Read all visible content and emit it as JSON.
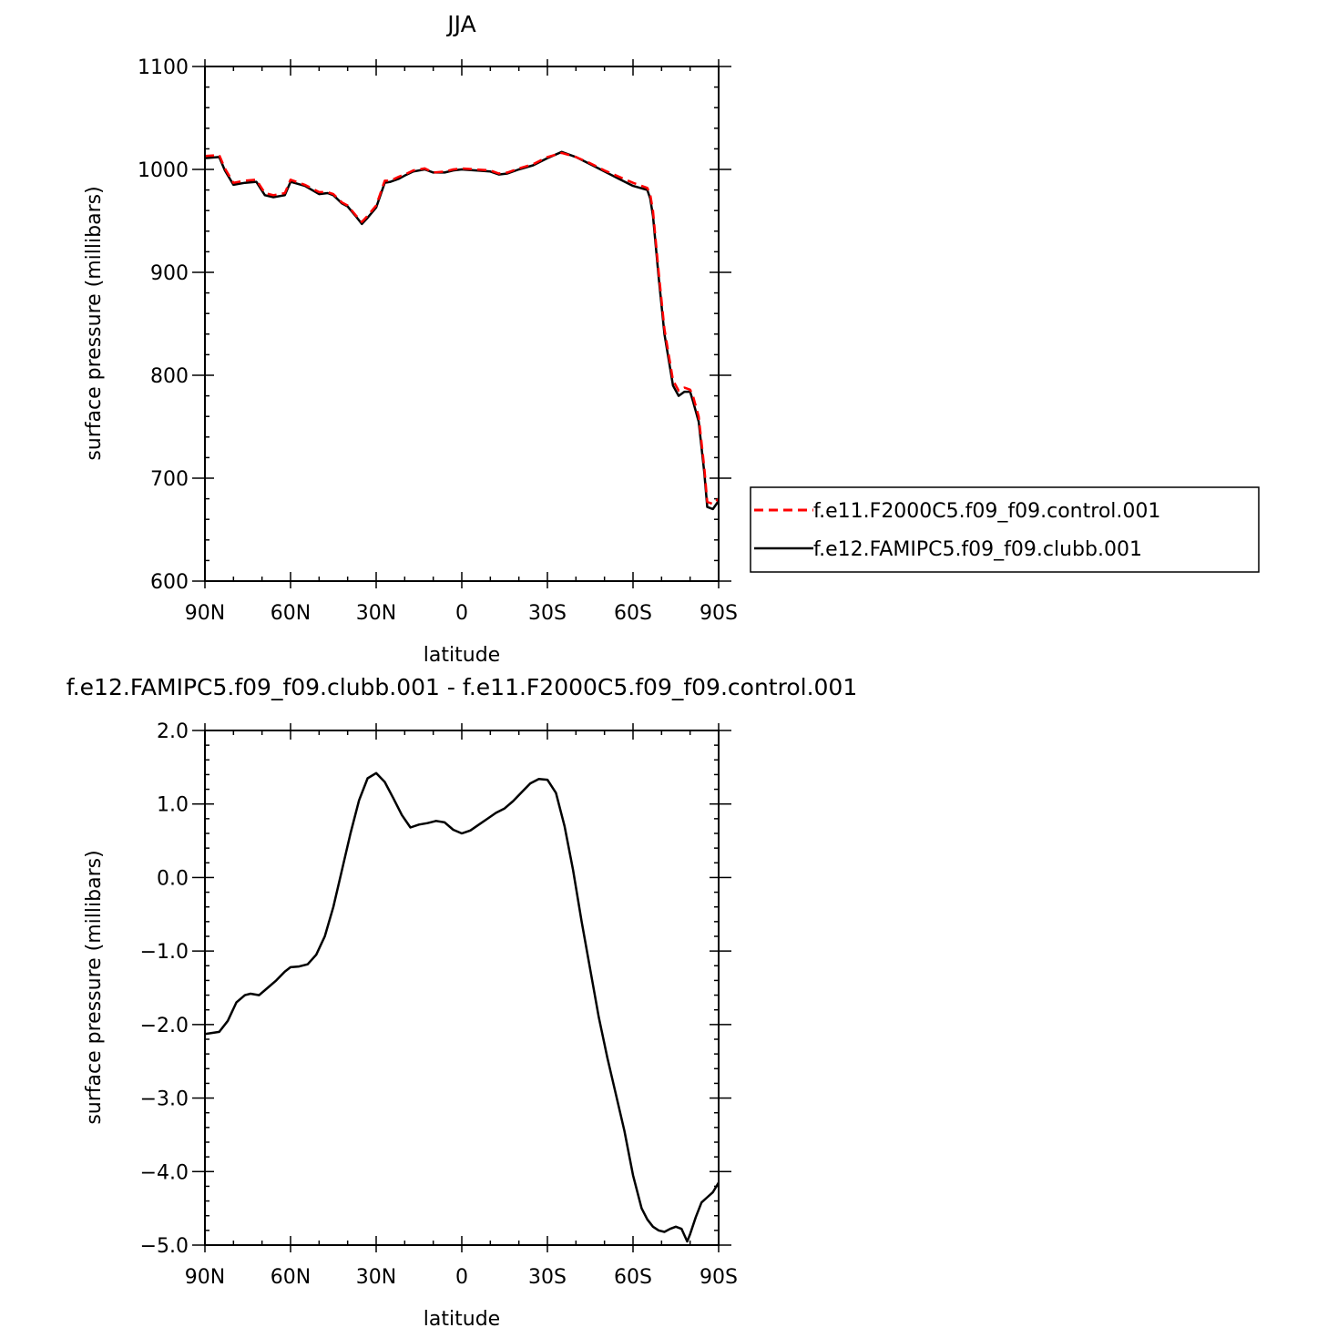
{
  "chart_data": [
    {
      "type": "line",
      "title": "JJA",
      "xlabel": "latitude",
      "ylabel": "surface pressure (millibars)",
      "xlim": [
        90,
        -90
      ],
      "ylim": [
        600,
        1100
      ],
      "x_ticks": [
        90,
        60,
        30,
        0,
        -30,
        -60,
        -90
      ],
      "x_tick_labels": [
        "90N",
        "60N",
        "30N",
        "0",
        "30S",
        "60S",
        "90S"
      ],
      "y_ticks": [
        600,
        700,
        800,
        900,
        1000,
        1100
      ],
      "y_tick_labels": [
        "600",
        "700",
        "800",
        "900",
        "1000",
        "1100"
      ],
      "legend_position": "right",
      "series": [
        {
          "name": "f.e11.F2000C5.f09_f09.control.001",
          "color": "#ff0000",
          "dash": "dashed",
          "x": [
            90,
            85,
            83,
            80,
            76,
            72,
            69,
            66,
            62,
            60,
            55,
            50,
            47,
            45,
            42,
            40,
            37,
            35,
            33,
            30,
            27,
            25,
            22,
            20,
            17,
            13,
            10,
            6,
            3,
            0,
            -5,
            -10,
            -13,
            -16,
            -20,
            -25,
            -30,
            -35,
            -40,
            -45,
            -50,
            -55,
            -60,
            -65,
            -66,
            -67,
            -69,
            -71,
            -74,
            -76,
            -78,
            -80,
            -81,
            -83,
            -85,
            -86,
            -88,
            -90
          ],
          "y": [
            1013,
            1014,
            1001,
            987,
            989,
            990,
            977,
            975,
            977,
            990,
            985,
            978,
            978,
            976,
            968,
            965,
            955,
            949,
            955,
            965,
            989,
            989,
            993,
            995,
            999,
            1001,
            997,
            998,
            1000,
            1001,
            1000,
            999,
            996,
            997,
            1001,
            1005,
            1012,
            1016,
            1012,
            1006,
            999,
            993,
            987,
            982,
            976,
            960,
            900,
            845,
            795,
            785,
            788,
            786,
            780,
            760,
            710,
            677,
            675,
            680
          ]
        },
        {
          "name": "f.e12.FAMIPC5.f09_f09.clubb.001",
          "color": "#000000",
          "dash": "solid",
          "x": [
            90,
            85,
            83,
            80,
            76,
            72,
            69,
            66,
            62,
            60,
            55,
            50,
            47,
            45,
            42,
            40,
            37,
            35,
            33,
            30,
            27,
            25,
            22,
            20,
            17,
            13,
            10,
            6,
            3,
            0,
            -5,
            -10,
            -13,
            -16,
            -20,
            -25,
            -30,
            -35,
            -40,
            -45,
            -50,
            -55,
            -60,
            -65,
            -66,
            -67,
            -69,
            -71,
            -74,
            -76,
            -78,
            -80,
            -81,
            -83,
            -85,
            -86,
            -88,
            -90
          ],
          "y": [
            1011,
            1012,
            999,
            985,
            987,
            988,
            975,
            973,
            975,
            988,
            984,
            976,
            977,
            975,
            967,
            964,
            954,
            947,
            953,
            963,
            987,
            988,
            991,
            994,
            998,
            1000,
            997,
            997,
            999,
            1000,
            999,
            998,
            995,
            996,
            1000,
            1004,
            1011,
            1017,
            1012,
            1005,
            998,
            991,
            984,
            980,
            972,
            955,
            895,
            840,
            790,
            780,
            784,
            784,
            775,
            755,
            705,
            672,
            670,
            678
          ]
        }
      ]
    },
    {
      "type": "line",
      "title": "f.e12.FAMIPC5.f09_f09.clubb.001 - f.e11.F2000C5.f09_f09.control.001",
      "xlabel": "latitude",
      "ylabel": "surface pressure (millibars)",
      "xlim": [
        90,
        -90
      ],
      "ylim": [
        -5.0,
        2.0
      ],
      "x_ticks": [
        90,
        60,
        30,
        0,
        -30,
        -60,
        -90
      ],
      "x_tick_labels": [
        "90N",
        "60N",
        "30N",
        "0",
        "30S",
        "60S",
        "90S"
      ],
      "y_ticks": [
        -5.0,
        -4.0,
        -3.0,
        -2.0,
        -1.0,
        0.0,
        1.0,
        2.0
      ],
      "y_tick_labels": [
        "−5.0",
        "−4.0",
        "−3.0",
        "−2.0",
        "−1.0",
        "0.0",
        "1.0",
        "2.0"
      ],
      "series": [
        {
          "color": "#000000",
          "dash": "solid",
          "x": [
            90,
            85,
            82,
            79,
            76,
            74,
            71,
            68,
            65,
            62,
            60,
            57,
            54,
            51,
            48,
            45,
            42,
            39,
            36,
            33,
            30,
            27,
            24,
            21,
            18,
            15,
            12,
            9,
            6,
            3,
            0,
            -3,
            -6,
            -9,
            -12,
            -15,
            -18,
            -21,
            -24,
            -27,
            -30,
            -33,
            -36,
            -39,
            -42,
            -45,
            -48,
            -51,
            -54,
            -57,
            -60,
            -63,
            -65,
            -67,
            -69,
            -71,
            -73,
            -75,
            -77,
            -79,
            -80,
            -82,
            -84,
            -86,
            -88,
            -90
          ],
          "y": [
            -2.13,
            -2.1,
            -1.95,
            -1.7,
            -1.6,
            -1.58,
            -1.6,
            -1.5,
            -1.4,
            -1.28,
            -1.22,
            -1.21,
            -1.18,
            -1.05,
            -0.8,
            -0.4,
            0.1,
            0.6,
            1.05,
            1.35,
            1.42,
            1.3,
            1.08,
            0.85,
            0.68,
            0.72,
            0.74,
            0.77,
            0.75,
            0.65,
            0.6,
            0.64,
            0.72,
            0.8,
            0.88,
            0.94,
            1.04,
            1.16,
            1.28,
            1.34,
            1.33,
            1.15,
            0.7,
            0.1,
            -0.6,
            -1.25,
            -1.9,
            -2.45,
            -2.95,
            -3.45,
            -4.05,
            -4.5,
            -4.65,
            -4.75,
            -4.8,
            -4.82,
            -4.78,
            -4.75,
            -4.78,
            -4.95,
            -4.85,
            -4.62,
            -4.42,
            -4.35,
            -4.28,
            -4.15
          ]
        }
      ]
    }
  ]
}
